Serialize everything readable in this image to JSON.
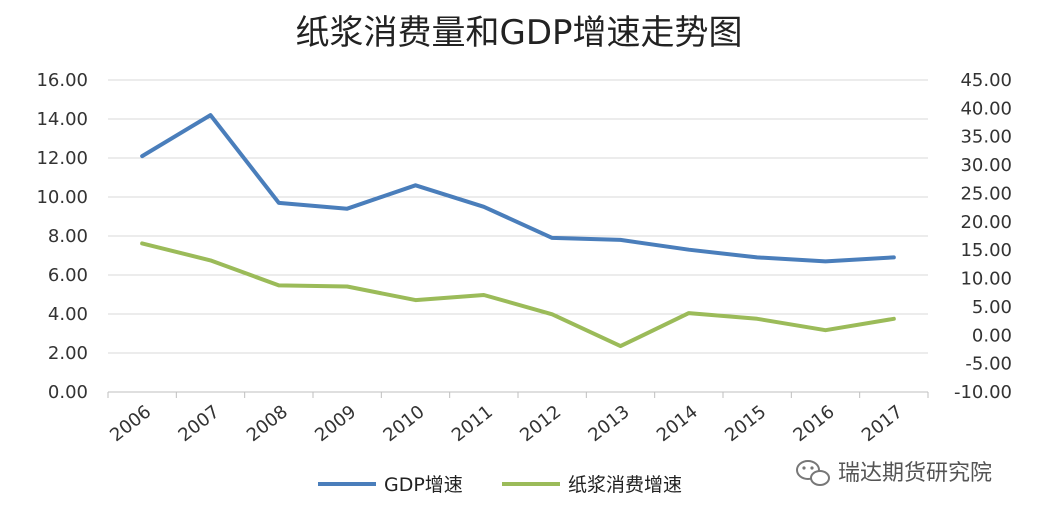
{
  "chart_data": {
    "type": "line",
    "title": "纸浆消费量和GDP增速走势图",
    "categories": [
      "2006",
      "2007",
      "2008",
      "2009",
      "2010",
      "2011",
      "2012",
      "2013",
      "2014",
      "2015",
      "2016",
      "2017"
    ],
    "left_axis": {
      "ylim": [
        0,
        16
      ],
      "ticks": [
        "0.00",
        "2.00",
        "4.00",
        "6.00",
        "8.00",
        "10.00",
        "12.00",
        "14.00",
        "16.00"
      ]
    },
    "right_axis": {
      "ylim": [
        -10,
        45
      ],
      "ticks": [
        "-10.00",
        "-5.00",
        "0.00",
        "5.00",
        "10.00",
        "15.00",
        "20.00",
        "25.00",
        "30.00",
        "35.00",
        "40.00",
        "45.00"
      ]
    },
    "series": [
      {
        "name": "GDP增速",
        "axis": "left",
        "color": "#4a7ebb",
        "values": [
          12.1,
          14.2,
          9.7,
          9.4,
          10.6,
          9.5,
          7.9,
          7.8,
          7.3,
          6.9,
          6.7,
          6.9
        ]
      },
      {
        "name": "纸浆消费增速",
        "axis": "right",
        "color": "#9bbb59",
        "values": [
          16.2,
          13.2,
          8.8,
          8.6,
          6.2,
          7.1,
          3.7,
          -1.9,
          3.9,
          2.9,
          0.9,
          2.9
        ]
      }
    ],
    "grid": true,
    "legend": "bottom"
  },
  "watermark": {
    "text": "瑞达期货研究院",
    "icon": "wechat-icon"
  }
}
